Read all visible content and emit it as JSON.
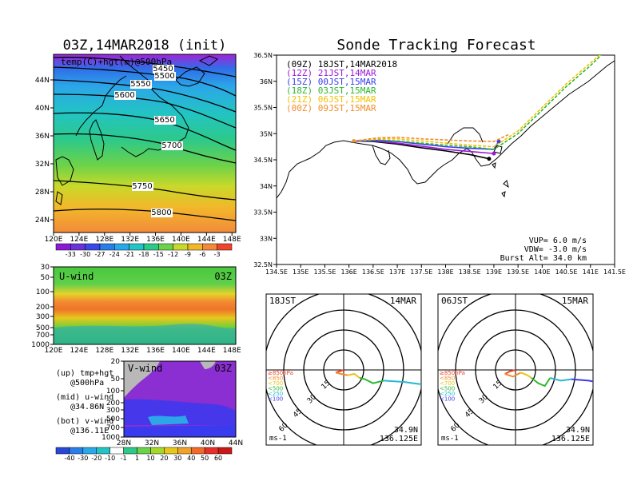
{
  "left_title": "03Z,14MAR2018 (init)",
  "right_title": "Sonde Tracking Forecast",
  "map_panel": {
    "label": "temp(C)+hgt(m)@500hPa",
    "lon_ticks": [
      "120E",
      "124E",
      "128E",
      "132E",
      "136E",
      "140E",
      "144E",
      "148E"
    ],
    "lat_ticks": [
      "44N",
      "40N",
      "36N",
      "32N",
      "28N",
      "24N"
    ],
    "contours": [
      {
        "label": "5450",
        "height": 5450
      },
      {
        "label": "5500",
        "height": 5500
      },
      {
        "label": "5550",
        "height": 5550
      },
      {
        "label": "5600",
        "height": 5600
      },
      {
        "label": "5650",
        "height": 5650
      },
      {
        "label": "5700",
        "height": 5700
      },
      {
        "label": "5750",
        "height": 5750
      },
      {
        "label": "5800",
        "height": 5800
      }
    ],
    "colorbar_ticks": [
      "-33",
      "-30",
      "-27",
      "-24",
      "-21",
      "-18",
      "-15",
      "-12",
      "-9",
      "-6",
      "-3"
    ]
  },
  "uwind_panel": {
    "label": "U-wind",
    "time": "03Z",
    "p_ticks": [
      "30",
      "50",
      "100",
      "200",
      "300",
      "500",
      "700",
      "1000"
    ],
    "lon_ticks": [
      "120E",
      "124E",
      "128E",
      "132E",
      "136E",
      "140E",
      "144E",
      "148E"
    ]
  },
  "vwind_panel": {
    "label": "V-wind",
    "time": "03Z",
    "p_ticks": [
      "20",
      "50",
      "100",
      "200",
      "300",
      "500",
      "700",
      "1000"
    ],
    "lat_ticks": [
      "28N",
      "32N",
      "36N",
      "40N",
      "44N"
    ],
    "colorbar_ticks": [
      "-40",
      "-30",
      "-20",
      "-10",
      "-1",
      "1",
      "10",
      "20",
      "30",
      "40",
      "50",
      "60"
    ]
  },
  "legend_notes": {
    "up1": "(up) tmp+hgt",
    "up2": "@500hPa",
    "mid1": "(mid) u-wind",
    "mid2": "@34.86N",
    "bot1": "(bot) v-wind",
    "bot2": "@136.11E"
  },
  "track_panel": {
    "lon_ticks": [
      "134.5E",
      "135E",
      "135.5E",
      "136E",
      "136.5E",
      "137E",
      "137.5E",
      "138E",
      "138.5E",
      "139E",
      "139.5E",
      "140E",
      "140.5E",
      "141E",
      "141.5E"
    ],
    "lat_ticks": [
      "36.5N",
      "36N",
      "35.5N",
      "35N",
      "34.5N",
      "34N",
      "33.5N",
      "33N",
      "32.5N"
    ],
    "legend": [
      {
        "label": "(09Z)  18JST,14MAR2018",
        "color": "#000000"
      },
      {
        "label": "(12Z)  21JST,14MAR",
        "color": "#9a1ad6"
      },
      {
        "label": "(15Z)  00JST,15MAR",
        "color": "#3a3aee"
      },
      {
        "label": "(18Z)  03JST,15MAR",
        "color": "#2db82d"
      },
      {
        "label": "(21Z)  06JST,15MAR",
        "color": "#f2c200"
      },
      {
        "label": "(00Z)  09JST,15MAR",
        "color": "#f28d2a"
      }
    ],
    "info": {
      "vup": "VUP= 6.0 m/s",
      "vdw": "VDW= -3.0 m/s",
      "burst": "Burst Alt= 34.0 km"
    }
  },
  "polar_left": {
    "time": "18JST",
    "date": "14MAR",
    "ring_labels": [
      "15",
      "30",
      "45",
      "60"
    ],
    "levels": [
      "≥850hPa",
      "<850",
      "<700",
      "<500",
      "<250",
      "<100"
    ],
    "unit": "ms-1",
    "coord_lat": "34.9N",
    "coord_lon": "136.125E"
  },
  "polar_right": {
    "time": "06JST",
    "date": "15MAR",
    "ring_labels": [
      "15",
      "30",
      "45",
      "60"
    ],
    "levels": [
      "≥850hPa",
      "<850",
      "<700",
      "<500",
      "<250",
      "<100"
    ],
    "unit": "ms-1",
    "coord_lat": "34.9N",
    "coord_lon": "136.125E"
  },
  "level_colors": [
    "#f0452a",
    "#f28d2a",
    "#e6c61a",
    "#2db82d",
    "#28b8d8",
    "#3a3aee"
  ],
  "chart_data": [
    {
      "type": "line",
      "title": "Sonde Tracking Forecast",
      "xlim": [
        134.5,
        141.5
      ],
      "ylim": [
        32.5,
        36.5
      ],
      "series": [
        {
          "name": "(09Z) 18JST,14MAR2018",
          "x": [
            136.1,
            136.5,
            137.0,
            137.5,
            138.0,
            138.5,
            138.9
          ],
          "y": [
            34.86,
            34.85,
            34.8,
            34.73,
            34.67,
            34.6,
            34.52
          ]
        },
        {
          "name": "(12Z) 21JST,14MAR",
          "x": [
            136.1,
            136.5,
            137.0,
            137.5,
            138.0,
            138.5,
            139.0
          ],
          "y": [
            34.86,
            34.86,
            34.82,
            34.76,
            34.7,
            34.66,
            34.62
          ]
        },
        {
          "name": "(15Z) 00JST,15MAR",
          "x": [
            136.1,
            136.6,
            137.0,
            137.5,
            138.0,
            138.5,
            139.0,
            139.1
          ],
          "y": [
            34.86,
            34.87,
            34.85,
            34.8,
            34.75,
            34.72,
            34.7,
            34.85
          ]
        },
        {
          "name": "(18Z) 03JST,15MAR",
          "x": [
            136.1,
            136.6,
            137.0,
            137.5,
            138.0,
            138.5,
            139.0,
            139.5,
            140.0,
            140.5,
            141.0,
            141.5
          ],
          "y": [
            34.86,
            34.88,
            34.86,
            34.82,
            34.78,
            34.75,
            34.7,
            35.0,
            35.45,
            35.9,
            36.3,
            36.75
          ]
        },
        {
          "name": "(21Z) 06JST,15MAR",
          "x": [
            136.1,
            136.6,
            137.0,
            137.5,
            138.0,
            138.5,
            139.0,
            139.5,
            140.0,
            140.5,
            141.0,
            141.5
          ],
          "y": [
            34.86,
            34.9,
            34.9,
            34.86,
            34.82,
            34.78,
            34.75,
            35.05,
            35.5,
            35.95,
            36.35,
            36.75
          ]
        },
        {
          "name": "(00Z) 09JST,15MAR",
          "x": [
            136.1,
            136.6,
            137.0,
            137.5,
            138.0,
            138.5,
            139.0,
            139.3
          ],
          "y": [
            34.86,
            34.92,
            34.93,
            34.9,
            34.88,
            34.86,
            34.85,
            34.98
          ]
        }
      ]
    },
    {
      "type": "line",
      "title": "18JST 14MAR",
      "xlabel": "ms-1",
      "series": [
        {
          "name": "≥850hPa",
          "x": [
            0,
            -3,
            -6
          ],
          "y": [
            0,
            -1,
            -2
          ]
        },
        {
          "name": "<850",
          "x": [
            -6,
            -2,
            3
          ],
          "y": [
            -2,
            -3,
            -4
          ]
        },
        {
          "name": "<700",
          "x": [
            3,
            8,
            12
          ],
          "y": [
            -4,
            -3,
            -6
          ]
        },
        {
          "name": "<500",
          "x": [
            12,
            16,
            22,
            30
          ],
          "y": [
            -6,
            -7,
            -10,
            -8
          ]
        },
        {
          "name": "<250",
          "x": [
            30,
            45,
            60
          ],
          "y": [
            -8,
            -9,
            -11
          ]
        }
      ]
    },
    {
      "type": "line",
      "title": "06JST 15MAR",
      "xlabel": "ms-1",
      "series": [
        {
          "name": "≥850hPa",
          "x": [
            0,
            -4,
            -8
          ],
          "y": [
            0,
            -1,
            -3
          ]
        },
        {
          "name": "<850",
          "x": [
            -8,
            -2,
            4
          ],
          "y": [
            -3,
            -5,
            -2
          ]
        },
        {
          "name": "<700",
          "x": [
            4,
            9,
            12
          ],
          "y": [
            -2,
            -4,
            -6
          ]
        },
        {
          "name": "<500",
          "x": [
            12,
            17,
            22,
            26
          ],
          "y": [
            -6,
            -10,
            -12,
            -6
          ]
        },
        {
          "name": "<250",
          "x": [
            26,
            34,
            42
          ],
          "y": [
            -6,
            -8,
            -7
          ]
        },
        {
          "name": "<100",
          "x": [
            42,
            55,
            65
          ],
          "y": [
            -7,
            -8,
            -10
          ]
        }
      ]
    }
  ]
}
